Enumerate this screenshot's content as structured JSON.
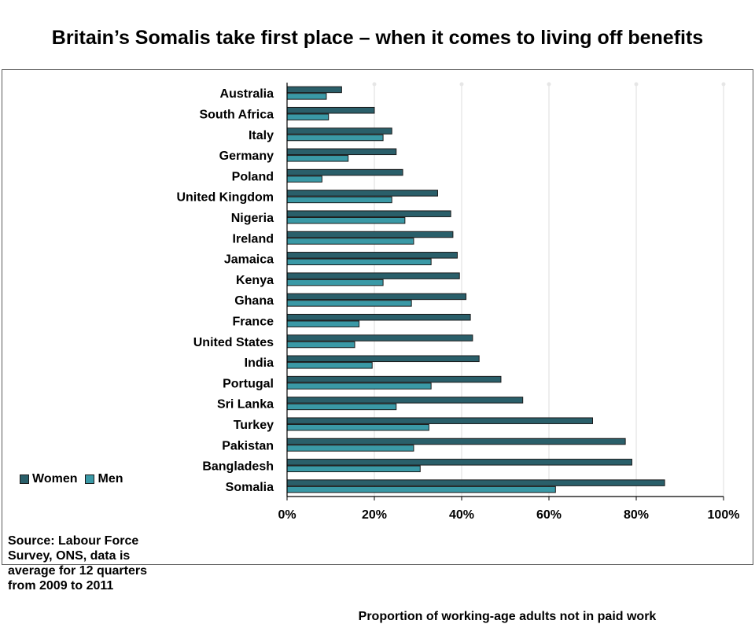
{
  "slide": {
    "title": "Britain’s Somalis take first place – when it comes to living off benefits"
  },
  "legend": {
    "women_label": "Women",
    "men_label": "Men"
  },
  "source": {
    "text": "Source: Labour Force Survey, ONS, data is average for 12 quarters from 2009 to 2011"
  },
  "colors": {
    "women": "#2a5f6a",
    "men": "#3a99a6",
    "bar_stroke": "#1a1a1a",
    "gridline": "#ffffff",
    "axis": "#000000"
  },
  "chart_data": {
    "type": "bar",
    "orientation": "horizontal",
    "title": "Britain’s Somalis take first place – when it comes to living off benefits",
    "xlabel": "Proportion of working-age adults not in paid work",
    "ylabel": "",
    "xlim": [
      0,
      100
    ],
    "x_ticks": [
      "0%",
      "20%",
      "40%",
      "60%",
      "80%",
      "100%"
    ],
    "x_tick_values": [
      0,
      20,
      40,
      60,
      80,
      100
    ],
    "grid": true,
    "legend_position": "left",
    "categories": [
      "Australia",
      "South Africa",
      "Italy",
      "Germany",
      "Poland",
      "United Kingdom",
      "Nigeria",
      "Ireland",
      "Jamaica",
      "Kenya",
      "Ghana",
      "France",
      "United States",
      "India",
      "Portugal",
      "Sri Lanka",
      "Turkey",
      "Pakistan",
      "Bangladesh",
      "Somalia"
    ],
    "series": [
      {
        "name": "Women",
        "values": [
          12.5,
          20,
          24,
          25,
          26.5,
          34.5,
          37.5,
          38,
          39,
          39.5,
          41,
          42,
          42.5,
          44,
          49,
          54,
          70,
          77.5,
          79,
          86.5
        ]
      },
      {
        "name": "Men",
        "values": [
          9,
          9.5,
          22,
          14,
          8,
          24,
          27,
          29,
          33,
          22,
          28.5,
          16.5,
          15.5,
          19.5,
          33,
          25,
          32.5,
          29,
          30.5,
          61.5
        ]
      }
    ]
  }
}
